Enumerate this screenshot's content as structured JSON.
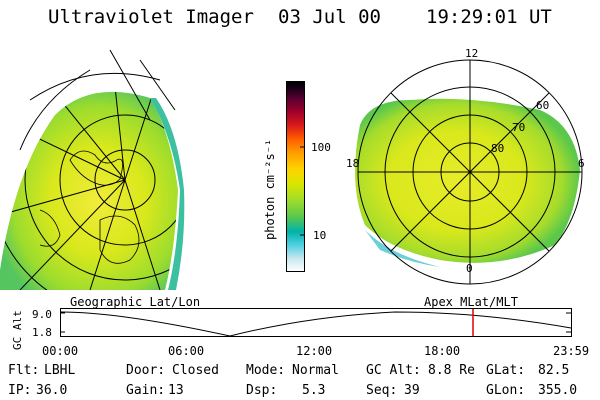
{
  "header": {
    "instrument": "Ultraviolet Imager",
    "date": "03 Jul 00",
    "time": "19:29:01 UT"
  },
  "colorbar": {
    "unit_label": "photon cm⁻²s⁻¹",
    "tick_labels": [
      "100",
      "10"
    ],
    "colors": [
      "#ffffff",
      "#c8e6ef",
      "#4dd0e1",
      "#00b3a8",
      "#5cc84b",
      "#9bdc2e",
      "#d8e600",
      "#ffd200",
      "#ff9a00",
      "#ff5a00",
      "#d81a1a",
      "#a0002a",
      "#5a0030",
      "#1a0018",
      "#000000"
    ]
  },
  "left_image": {
    "label": "Geographic Lat/Lon"
  },
  "right_image": {
    "label": "Apex MLat/MLT",
    "mlt_labels": {
      "top": "12",
      "left": "18",
      "right": "6",
      "bottom": "0"
    },
    "lat_labels": [
      "60",
      "70",
      "80"
    ]
  },
  "altitude_plot": {
    "ylabel": "GC Alt",
    "y_ticks": [
      "9.0",
      "1.8"
    ],
    "x_ticks": [
      "00:00",
      "06:00",
      "12:00",
      "18:00",
      "23:59"
    ],
    "current_marker_color": "#e00000"
  },
  "status": {
    "row1": [
      {
        "label": "Flt:",
        "value": "LBHL"
      },
      {
        "label": "Door:",
        "value": "Closed"
      },
      {
        "label": "Mode:",
        "value": "Normal"
      },
      {
        "label": "GC Alt:",
        "value": "8.8 Re"
      },
      {
        "label": "GLat:",
        "value": "82.5"
      }
    ],
    "row2": [
      {
        "label": "IP:",
        "value": "36.0"
      },
      {
        "label": "Gain:",
        "value": "13"
      },
      {
        "label": "Dsp:",
        "value": "5.3"
      },
      {
        "label": "Seq:",
        "value": "39"
      },
      {
        "label": "GLon:",
        "value": "355.0"
      }
    ]
  }
}
